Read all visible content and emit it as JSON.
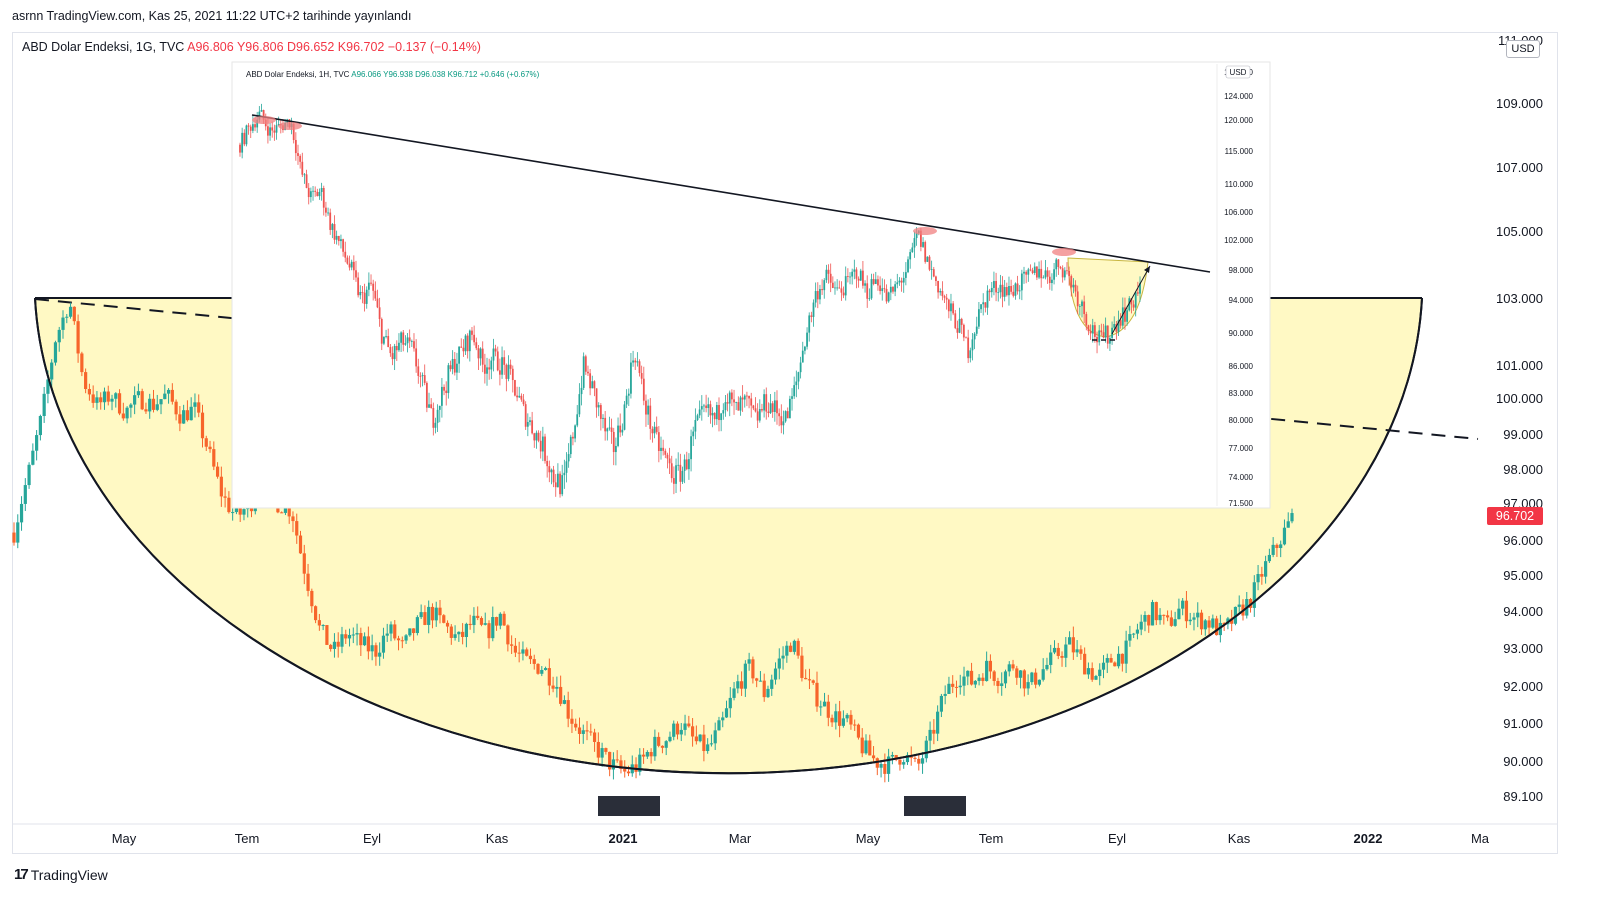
{
  "caption": "asrnn TradingView.com, Kas 25, 2021 11:22 UTC+2 tarihinde yayınlandı",
  "legend": {
    "symbol": "ABD Dolar Endeksi, 1G, TVC",
    "open": "A96.806",
    "high": "Y96.806",
    "low": "D96.652",
    "close": "K96.702",
    "change": "−0.137 (−0.14%)"
  },
  "inset_legend": {
    "symbol": "ABD Dolar Endeksi, 1H, TVC",
    "open": "A96.066",
    "high": "Y96.938",
    "low": "D96.038",
    "close": "K96.712",
    "change": "+0.646 (+0.67%)"
  },
  "currency": "USD",
  "current_price": "96.702",
  "branding": "TradingView",
  "colors": {
    "up": "#26a69a",
    "down": "#f7652b",
    "bowl_fill": "#fff9c4",
    "price_tag": "#f23645"
  },
  "chart_data": [
    {
      "type": "candlestick",
      "title": "ABD Dolar Endeksi, 1G, TVC",
      "y_axis": {
        "ticks": [
          "111.000",
          "109.000",
          "107.000",
          "105.000",
          "103.000",
          "101.000",
          "100.000",
          "99.000",
          "98.000",
          "97.000",
          "96.000",
          "95.000",
          "94.000",
          "93.000",
          "92.000",
          "91.000",
          "90.000",
          "89.100"
        ],
        "scale": "log"
      },
      "x_axis": {
        "ticks": [
          {
            "label": "May",
            "bold": false
          },
          {
            "label": "Tem",
            "bold": false
          },
          {
            "label": "Eyl",
            "bold": false
          },
          {
            "label": "Kas",
            "bold": false
          },
          {
            "label": "2021",
            "bold": true
          },
          {
            "label": "Mar",
            "bold": false
          },
          {
            "label": "May",
            "bold": false
          },
          {
            "label": "Tem",
            "bold": false
          },
          {
            "label": "Eyl",
            "bold": false
          },
          {
            "label": "Kas",
            "bold": false
          },
          {
            "label": "2022",
            "bold": true
          },
          {
            "label": "Ma",
            "bold": false
          }
        ]
      },
      "series_close_path": [
        [
          0,
          96.2
        ],
        [
          0.01,
          97.8
        ],
        [
          0.02,
          99.5
        ],
        [
          0.03,
          101.8
        ],
        [
          0.04,
          102.9
        ],
        [
          0.05,
          100.5
        ],
        [
          0.06,
          99.8
        ],
        [
          0.07,
          100.1
        ],
        [
          0.08,
          99.6
        ],
        [
          0.09,
          100.0
        ],
        [
          0.1,
          99.8
        ],
        [
          0.11,
          100.1
        ],
        [
          0.12,
          99.5
        ],
        [
          0.13,
          99.7
        ],
        [
          0.14,
          98.5
        ],
        [
          0.15,
          97.2
        ],
        [
          0.16,
          96.6
        ],
        [
          0.17,
          97.0
        ],
        [
          0.18,
          97.4
        ],
        [
          0.19,
          97.0
        ],
        [
          0.2,
          96.8
        ],
        [
          0.21,
          95.0
        ],
        [
          0.22,
          93.5
        ],
        [
          0.23,
          92.9
        ],
        [
          0.24,
          93.4
        ],
        [
          0.25,
          93.1
        ],
        [
          0.26,
          92.9
        ],
        [
          0.27,
          93.5
        ],
        [
          0.28,
          93.0
        ],
        [
          0.29,
          93.6
        ],
        [
          0.3,
          94.0
        ],
        [
          0.31,
          93.6
        ],
        [
          0.32,
          93.2
        ],
        [
          0.33,
          93.7
        ],
        [
          0.34,
          93.4
        ],
        [
          0.35,
          93.9
        ],
        [
          0.36,
          92.9
        ],
        [
          0.37,
          92.6
        ],
        [
          0.38,
          92.5
        ],
        [
          0.39,
          92.1
        ],
        [
          0.4,
          91.2
        ],
        [
          0.41,
          90.7
        ],
        [
          0.42,
          90.3
        ],
        [
          0.43,
          89.9
        ],
        [
          0.44,
          89.7
        ],
        [
          0.45,
          89.9
        ],
        [
          0.46,
          90.4
        ],
        [
          0.47,
          90.6
        ],
        [
          0.48,
          91.0
        ],
        [
          0.49,
          90.5
        ],
        [
          0.5,
          90.3
        ],
        [
          0.51,
          91.0
        ],
        [
          0.52,
          92.0
        ],
        [
          0.53,
          92.5
        ],
        [
          0.54,
          91.8
        ],
        [
          0.55,
          92.6
        ],
        [
          0.56,
          93.2
        ],
        [
          0.57,
          92.1
        ],
        [
          0.58,
          91.6
        ],
        [
          0.59,
          91.2
        ],
        [
          0.6,
          91.0
        ],
        [
          0.61,
          90.4
        ],
        [
          0.62,
          90.0
        ],
        [
          0.63,
          89.9
        ],
        [
          0.64,
          90.2
        ],
        [
          0.65,
          89.8
        ],
        [
          0.66,
          90.6
        ],
        [
          0.67,
          91.8
        ],
        [
          0.68,
          92.3
        ],
        [
          0.69,
          92.1
        ],
        [
          0.7,
          92.5
        ],
        [
          0.71,
          92.2
        ],
        [
          0.72,
          92.6
        ],
        [
          0.73,
          92.0
        ],
        [
          0.74,
          92.4
        ],
        [
          0.75,
          92.8
        ],
        [
          0.76,
          93.1
        ],
        [
          0.77,
          92.6
        ],
        [
          0.78,
          92.2
        ],
        [
          0.79,
          92.7
        ],
        [
          0.8,
          92.9
        ],
        [
          0.81,
          93.6
        ],
        [
          0.82,
          94.0
        ],
        [
          0.83,
          93.6
        ],
        [
          0.84,
          94.1
        ],
        [
          0.85,
          93.8
        ],
        [
          0.86,
          93.7
        ],
        [
          0.87,
          93.4
        ],
        [
          0.88,
          93.9
        ],
        [
          0.89,
          94.3
        ],
        [
          0.9,
          95.2
        ],
        [
          0.91,
          95.9
        ],
        [
          0.92,
          96.6
        ]
      ]
    },
    {
      "type": "candlestick",
      "title": "ABD Dolar Endeksi, 1H, TVC",
      "y_axis": {
        "ticks": [
          "128.000",
          "124.000",
          "120.000",
          "115.000",
          "110.000",
          "106.000",
          "102.000",
          "98.000",
          "94.000",
          "90.000",
          "86.000",
          "83.000",
          "80.000",
          "77.000",
          "74.000",
          "71.500"
        ],
        "scale": "log"
      },
      "series_close_path": [
        [
          0,
          116
        ],
        [
          0.01,
          119
        ],
        [
          0.02,
          121
        ],
        [
          0.03,
          118
        ],
        [
          0.04,
          119
        ],
        [
          0.05,
          120
        ],
        [
          0.06,
          112
        ],
        [
          0.07,
          108
        ],
        [
          0.08,
          109
        ],
        [
          0.09,
          104
        ],
        [
          0.1,
          101
        ],
        [
          0.11,
          98
        ],
        [
          0.12,
          94
        ],
        [
          0.13,
          96
        ],
        [
          0.14,
          90
        ],
        [
          0.15,
          87
        ],
        [
          0.16,
          89
        ],
        [
          0.17,
          88
        ],
        [
          0.18,
          84
        ],
        [
          0.19,
          80
        ],
        [
          0.2,
          83
        ],
        [
          0.21,
          86
        ],
        [
          0.22,
          88
        ],
        [
          0.23,
          90
        ],
        [
          0.24,
          86
        ],
        [
          0.25,
          87
        ],
        [
          0.26,
          86
        ],
        [
          0.27,
          84
        ],
        [
          0.28,
          81
        ],
        [
          0.29,
          79
        ],
        [
          0.3,
          77
        ],
        [
          0.31,
          74
        ],
        [
          0.32,
          73
        ],
        [
          0.33,
          79
        ],
        [
          0.34,
          86
        ],
        [
          0.35,
          83
        ],
        [
          0.36,
          79
        ],
        [
          0.37,
          77
        ],
        [
          0.38,
          81
        ],
        [
          0.39,
          88
        ],
        [
          0.4,
          82
        ],
        [
          0.41,
          78
        ],
        [
          0.42,
          76
        ],
        [
          0.43,
          74
        ],
        [
          0.44,
          75
        ],
        [
          0.45,
          79
        ],
        [
          0.46,
          81
        ],
        [
          0.47,
          80
        ],
        [
          0.48,
          83
        ],
        [
          0.49,
          81
        ],
        [
          0.5,
          82
        ],
        [
          0.51,
          80
        ],
        [
          0.52,
          82
        ],
        [
          0.53,
          81
        ],
        [
          0.54,
          80
        ],
        [
          0.55,
          84
        ],
        [
          0.56,
          90
        ],
        [
          0.57,
          95
        ],
        [
          0.58,
          97
        ],
        [
          0.59,
          95
        ],
        [
          0.6,
          96
        ],
        [
          0.61,
          98
        ],
        [
          0.62,
          95
        ],
        [
          0.63,
          97
        ],
        [
          0.64,
          94
        ],
        [
          0.65,
          96
        ],
        [
          0.66,
          98
        ],
        [
          0.67,
          103
        ],
        [
          0.68,
          99
        ],
        [
          0.69,
          96
        ],
        [
          0.7,
          93
        ],
        [
          0.71,
          91
        ],
        [
          0.72,
          88
        ],
        [
          0.73,
          92
        ],
        [
          0.74,
          95
        ],
        [
          0.75,
          96
        ],
        [
          0.76,
          95
        ],
        [
          0.77,
          96
        ],
        [
          0.78,
          97
        ],
        [
          0.79,
          98
        ],
        [
          0.8,
          97
        ],
        [
          0.81,
          99
        ],
        [
          0.82,
          97
        ],
        [
          0.83,
          94
        ],
        [
          0.84,
          91
        ],
        [
          0.85,
          89
        ],
        [
          0.86,
          90
        ],
        [
          0.87,
          92
        ],
        [
          0.88,
          93
        ],
        [
          0.89,
          96
        ]
      ]
    }
  ]
}
